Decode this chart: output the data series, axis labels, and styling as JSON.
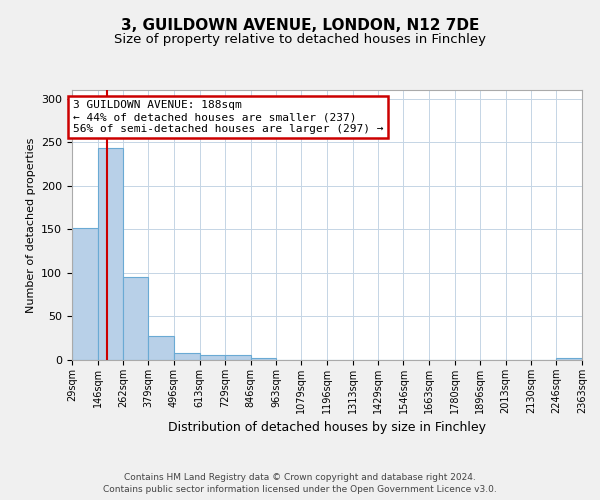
{
  "title": "3, GUILDOWN AVENUE, LONDON, N12 7DE",
  "subtitle": "Size of property relative to detached houses in Finchley",
  "xlabel": "Distribution of detached houses by size in Finchley",
  "ylabel": "Number of detached properties",
  "bin_edges": [
    29,
    146,
    262,
    379,
    496,
    613,
    729,
    846,
    963,
    1079,
    1196,
    1313,
    1429,
    1546,
    1663,
    1780,
    1896,
    2013,
    2130,
    2246,
    2363
  ],
  "bin_labels": [
    "29sqm",
    "146sqm",
    "262sqm",
    "379sqm",
    "496sqm",
    "613sqm",
    "729sqm",
    "846sqm",
    "963sqm",
    "1079sqm",
    "1196sqm",
    "1313sqm",
    "1429sqm",
    "1546sqm",
    "1663sqm",
    "1780sqm",
    "1896sqm",
    "2013sqm",
    "2130sqm",
    "2246sqm",
    "2363sqm"
  ],
  "bar_heights": [
    152,
    243,
    95,
    28,
    8,
    6,
    6,
    2,
    0,
    0,
    0,
    0,
    0,
    0,
    0,
    0,
    0,
    0,
    0,
    2
  ],
  "bar_color": "#b8d0e8",
  "bar_edge_color": "#6aaad4",
  "property_value": 188,
  "property_line_color": "#cc0000",
  "annotation_box_color": "#cc0000",
  "annotation_title": "3 GUILDOWN AVENUE: 188sqm",
  "annotation_line1": "← 44% of detached houses are smaller (237)",
  "annotation_line2": "56% of semi-detached houses are larger (297) →",
  "ylim": [
    0,
    310
  ],
  "yticks": [
    0,
    50,
    100,
    150,
    200,
    250,
    300
  ],
  "footer1": "Contains HM Land Registry data © Crown copyright and database right 2024.",
  "footer2": "Contains public sector information licensed under the Open Government Licence v3.0.",
  "bg_color": "#f0f0f0",
  "plot_bg_color": "#ffffff",
  "grid_color": "#c5d5e5"
}
